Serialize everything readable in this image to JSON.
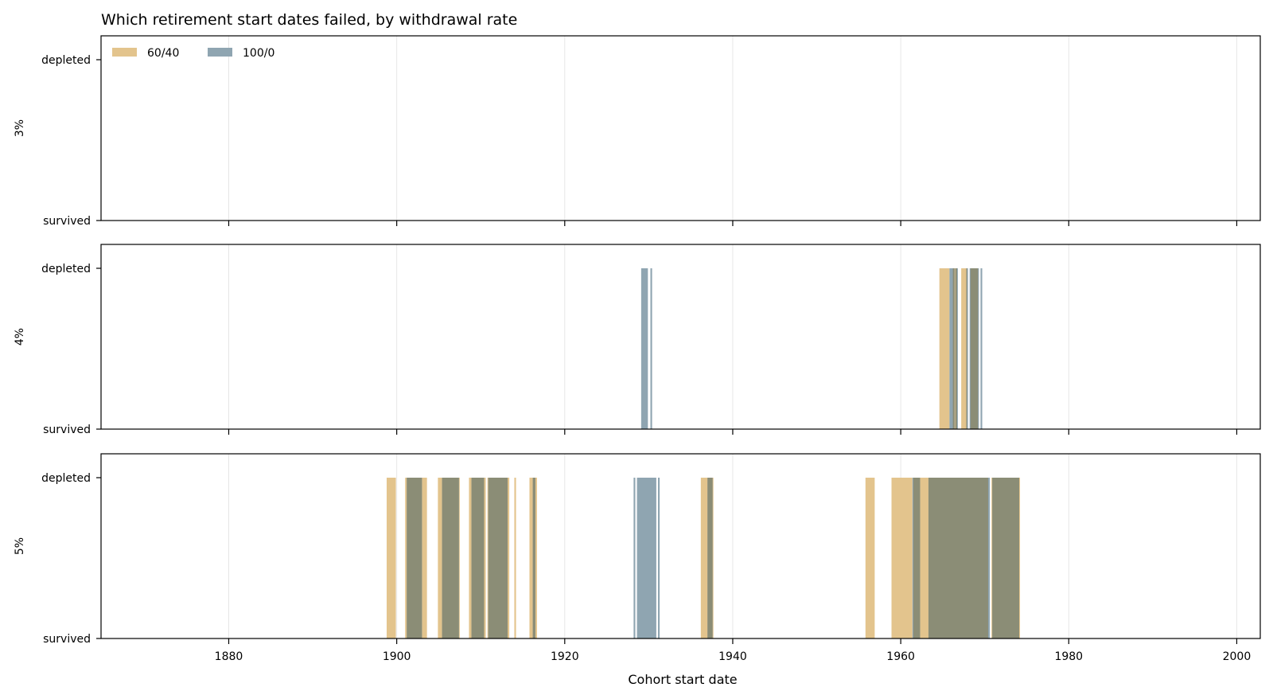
{
  "chart_data": {
    "type": "bar",
    "title": "Which retirement start dates failed, by withdrawal rate",
    "xlabel": "Cohort start date",
    "xlim": [
      1864.8,
      2002.8
    ],
    "xticks": [
      1880,
      1900,
      1920,
      1940,
      1960,
      1980,
      2000
    ],
    "ytick_labels": {
      "top": "depleted",
      "bottom": "survived"
    },
    "ylim": [
      0,
      1.15
    ],
    "grid": true,
    "legend": {
      "placement": "top-left",
      "entries": [
        "60/40",
        "100/0"
      ]
    },
    "colors": {
      "60/40": "#e3c48d",
      "100/0": "#8fa5b1",
      "both": "#8b8d76"
    },
    "panels": [
      {
        "ylabel": "3%",
        "series": [
          {
            "name": "60/40",
            "depleted_intervals": []
          },
          {
            "name": "100/0",
            "depleted_intervals": []
          }
        ]
      },
      {
        "ylabel": "4%",
        "series": [
          {
            "name": "60/40",
            "depleted_intervals": [
              [
                1964.6,
                1965.8
              ],
              [
                1966.2,
                1966.7
              ],
              [
                1967.2,
                1967.9
              ],
              [
                1968.3,
                1969.2
              ]
            ]
          },
          {
            "name": "100/0",
            "depleted_intervals": [
              [
                1929.1,
                1929.9
              ],
              [
                1930.2,
                1930.4
              ],
              [
                1965.8,
                1966.4
              ],
              [
                1966.5,
                1966.8
              ],
              [
                1967.8,
                1968.0
              ],
              [
                1968.2,
                1969.3
              ],
              [
                1969.5,
                1969.7
              ]
            ]
          }
        ]
      },
      {
        "ylabel": "5%",
        "series": [
          {
            "name": "60/40",
            "depleted_intervals": [
              [
                1898.8,
                1899.9
              ],
              [
                1901.0,
                1903.6
              ],
              [
                1904.9,
                1907.5
              ],
              [
                1908.6,
                1910.6
              ],
              [
                1910.8,
                1913.4
              ],
              [
                1914.0,
                1914.2
              ],
              [
                1915.8,
                1916.7
              ],
              [
                1936.2,
                1937.7
              ],
              [
                1955.8,
                1956.9
              ],
              [
                1958.9,
                1961.4
              ],
              [
                1961.5,
                1963.3
              ],
              [
                1963.3,
                1970.4
              ],
              [
                1970.8,
                1974.2
              ]
            ]
          },
          {
            "name": "100/0",
            "depleted_intervals": [
              [
                1901.2,
                1903.0
              ],
              [
                1905.4,
                1907.4
              ],
              [
                1908.9,
                1910.4
              ],
              [
                1910.9,
                1913.2
              ],
              [
                1916.2,
                1916.5
              ],
              [
                1928.2,
                1928.4
              ],
              [
                1928.6,
                1930.9
              ],
              [
                1931.1,
                1931.3
              ],
              [
                1937.0,
                1937.6
              ],
              [
                1961.4,
                1962.3
              ],
              [
                1963.3,
                1970.6
              ],
              [
                1970.9,
                1974.1
              ]
            ]
          }
        ]
      }
    ]
  }
}
